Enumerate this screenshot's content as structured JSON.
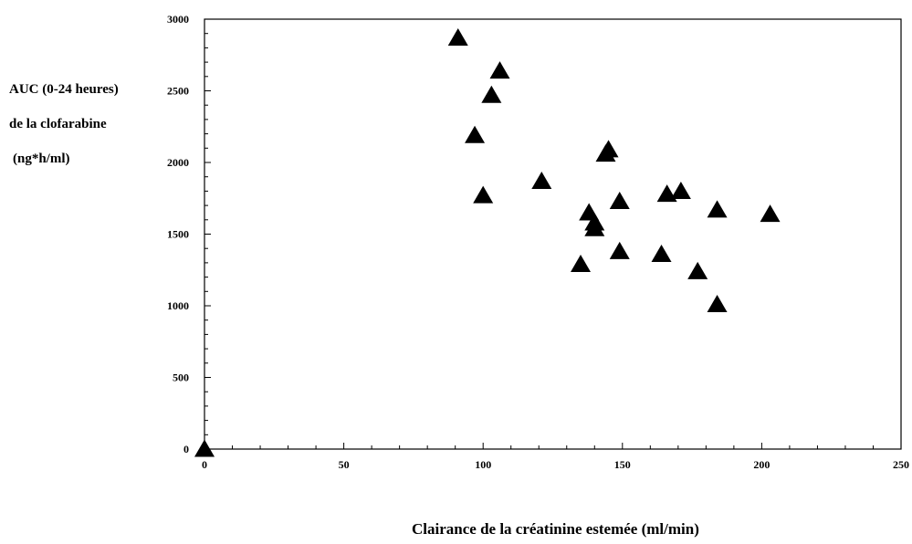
{
  "chart_data": {
    "type": "scatter",
    "ylabel_lines": [
      "AUC (0-24 heures)",
      "de la clofarabine",
      "(ng*h/ml)"
    ],
    "xlabel": "Clairance de la créatinine estemée (ml/min)",
    "xlim": [
      0,
      250
    ],
    "ylim": [
      0,
      3000
    ],
    "x_ticks": [
      0,
      50,
      100,
      150,
      200,
      250
    ],
    "y_ticks": [
      0,
      500,
      1000,
      1500,
      2000,
      2500,
      3000
    ],
    "grid": false,
    "marker": "filled-triangle",
    "marker_color": "#000000",
    "points": [
      {
        "x": 0,
        "y": 0
      },
      {
        "x": 91,
        "y": 2870
      },
      {
        "x": 106,
        "y": 2640
      },
      {
        "x": 103,
        "y": 2470
      },
      {
        "x": 97,
        "y": 2190
      },
      {
        "x": 145,
        "y": 2090
      },
      {
        "x": 144,
        "y": 2060
      },
      {
        "x": 121,
        "y": 1870
      },
      {
        "x": 100,
        "y": 1770
      },
      {
        "x": 149,
        "y": 1730
      },
      {
        "x": 166,
        "y": 1780
      },
      {
        "x": 171,
        "y": 1800
      },
      {
        "x": 184,
        "y": 1670
      },
      {
        "x": 203,
        "y": 1640
      },
      {
        "x": 138,
        "y": 1650
      },
      {
        "x": 140,
        "y": 1580
      },
      {
        "x": 140,
        "y": 1540
      },
      {
        "x": 149,
        "y": 1380
      },
      {
        "x": 164,
        "y": 1360
      },
      {
        "x": 135,
        "y": 1290
      },
      {
        "x": 177,
        "y": 1240
      },
      {
        "x": 184,
        "y": 1010
      }
    ]
  }
}
